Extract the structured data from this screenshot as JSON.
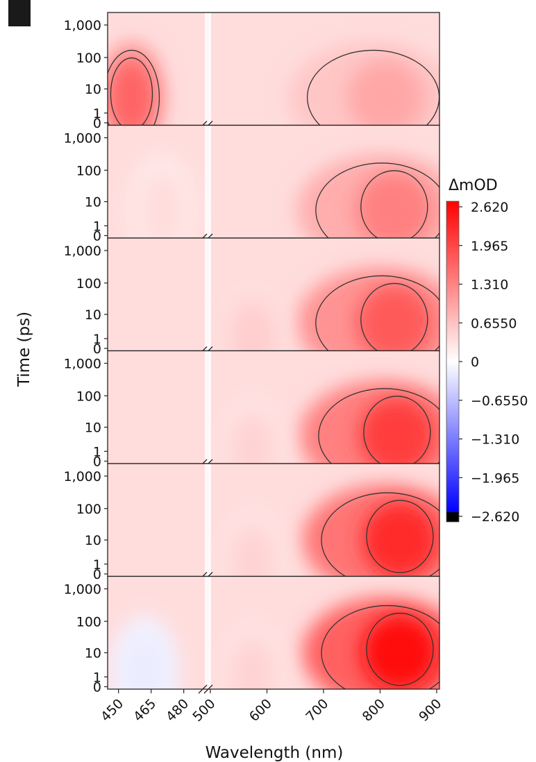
{
  "panel_label": "",
  "chart_data": {
    "type": "heatmap",
    "panel_count": 6,
    "xlabel": "Wavelength (nm)",
    "ylabel": "Time (ps)",
    "x_axis_break": {
      "left_segment": [
        445,
        490
      ],
      "right_segment": [
        500,
        905
      ]
    },
    "x_ticks": [
      "450",
      "465",
      "480",
      "500",
      "600",
      "700",
      "800",
      "900"
    ],
    "x_tick_values": [
      450,
      465,
      480,
      500,
      600,
      700,
      800,
      900
    ],
    "y_scale": "symlog",
    "y_ticks": [
      "0",
      "1",
      "10",
      "100",
      "1,000"
    ],
    "y_tick_values": [
      0,
      1,
      10,
      100,
      1000
    ],
    "colorbar": {
      "title": "ΔmOD",
      "range": [
        -2.62,
        2.62
      ],
      "tick_labels": [
        "2.620",
        "1.965",
        "1.310",
        "0.6550",
        "0",
        "−0.6550",
        "−1.310",
        "−1.965",
        "−2.620"
      ],
      "tick_values": [
        2.62,
        1.965,
        1.31,
        0.655,
        0,
        -0.655,
        -1.31,
        -1.965,
        -2.62
      ],
      "colors": {
        "positive": "#ff0000",
        "zero": "#ffffff",
        "negative": "#0000ff",
        "min_end": "#000000"
      }
    },
    "panels": [
      {
        "name": "",
        "features": [
          {
            "center_nm": 456,
            "center_time_ps": 5,
            "peak_mOD": 1.6
          },
          {
            "center_nm": 810,
            "center_time_ps": 5,
            "peak_mOD": 0.9
          }
        ]
      },
      {
        "name": "",
        "features": [
          {
            "center_nm": 825,
            "center_time_ps": 5,
            "peak_mOD": 1.3
          },
          {
            "center_nm": 470,
            "center_time_ps": 5,
            "peak_mOD": 0.35
          }
        ]
      },
      {
        "name": "",
        "features": [
          {
            "center_nm": 825,
            "center_time_ps": 5,
            "peak_mOD": 1.7
          },
          {
            "center_nm": 575,
            "center_time_ps": 1,
            "peak_mOD": 0.5
          }
        ]
      },
      {
        "name": "",
        "features": [
          {
            "center_nm": 830,
            "center_time_ps": 5,
            "peak_mOD": 2.0
          },
          {
            "center_nm": 575,
            "center_time_ps": 1,
            "peak_mOD": 0.45
          }
        ]
      },
      {
        "name": "",
        "features": [
          {
            "center_nm": 835,
            "center_time_ps": 10,
            "peak_mOD": 2.2
          },
          {
            "center_nm": 575,
            "center_time_ps": 1,
            "peak_mOD": 0.45
          }
        ]
      },
      {
        "name": "",
        "features": [
          {
            "center_nm": 835,
            "center_time_ps": 10,
            "peak_mOD": 2.5
          },
          {
            "center_nm": 575,
            "center_time_ps": 1,
            "peak_mOD": 0.45
          },
          {
            "center_nm": 462,
            "center_time_ps": 2,
            "peak_mOD": -0.2
          }
        ]
      }
    ]
  }
}
